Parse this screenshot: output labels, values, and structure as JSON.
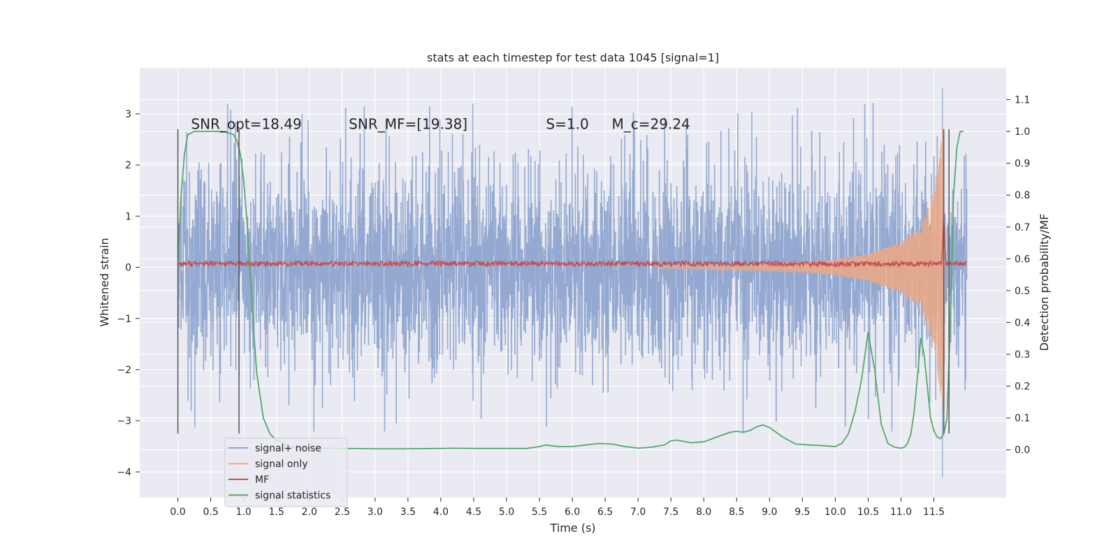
{
  "chart_data": {
    "type": "line",
    "title": "stats at each timestep for test data 1045 [signal=1]",
    "xlabel": "Time (s)",
    "ylabel": "Whitened strain",
    "y2label": "Detection probability/MF",
    "xlim": [
      -0.58,
      12.6
    ],
    "ylim": [
      -4.5,
      3.9
    ],
    "y2lim": [
      -0.15,
      1.2
    ],
    "x_ticks": [
      0.0,
      0.5,
      1.0,
      1.5,
      2.0,
      2.5,
      3.0,
      3.5,
      4.0,
      4.5,
      5.0,
      5.5,
      6.0,
      6.5,
      7.0,
      7.5,
      8.0,
      8.5,
      9.0,
      9.5,
      10.0,
      10.5,
      11.0,
      11.5
    ],
    "x_tick_labels": [
      "0.0",
      "0.5",
      "1.0",
      "1.5",
      "2.0",
      "2.5",
      "3.0",
      "3.5",
      "4.0",
      "4.5",
      "5.0",
      "5.5",
      "6.0",
      "6.5",
      "7.0",
      "7.5",
      "8.0",
      "8.5",
      "9.0",
      "9.5",
      "10.0",
      "10.5",
      "11.0",
      "11.5"
    ],
    "y_ticks": [
      -4,
      -3,
      -2,
      -1,
      0,
      1,
      2,
      3
    ],
    "y_tick_labels": [
      "−4",
      "−3",
      "−2",
      "−1",
      "0",
      "1",
      "2",
      "3"
    ],
    "y2_ticks": [
      0.0,
      0.1,
      0.2,
      0.3,
      0.4,
      0.5,
      0.6,
      0.7,
      0.8,
      0.9,
      1.0,
      1.1
    ],
    "y2_tick_labels": [
      "0.0",
      "0.1",
      "0.2",
      "0.3",
      "0.4",
      "0.5",
      "0.6",
      "0.7",
      "0.8",
      "0.9",
      "1.0",
      "1.1"
    ],
    "grid": true,
    "legend": {
      "placement": "lower-left",
      "entries": [
        {
          "label": "signal+ noise",
          "color": "#8fa5cf"
        },
        {
          "label": "signal only",
          "color": "#e8a987"
        },
        {
          "label": "MF",
          "color": "#c44e52"
        },
        {
          "label": "signal statistics",
          "color": "#55a868"
        }
      ]
    },
    "annotations": [
      {
        "text": "SNR_opt=18.49",
        "x": 0.2,
        "y": 2.8
      },
      {
        "text": "SNR_MF=[19.38]",
        "x": 2.6,
        "y": 2.8
      },
      {
        "text": "S=1.0",
        "x": 5.6,
        "y": 2.8
      },
      {
        "text": "M_c=29.24",
        "x": 6.6,
        "y": 2.8
      }
    ],
    "vertical_lines": [
      {
        "x": 0.0,
        "ymin": -3.25,
        "ymax": 2.7
      },
      {
        "x": 0.93,
        "ymin": -3.25,
        "ymax": 2.7
      },
      {
        "x": 11.65,
        "ymin": -3.25,
        "ymax": 2.7
      },
      {
        "x": 11.73,
        "ymin": -3.25,
        "ymax": 2.7
      }
    ],
    "series": [
      {
        "name": "signal+ noise",
        "color": "#8fa5cf",
        "axis": "left",
        "x_range": [
          0,
          12.0
        ],
        "typical_amplitude": 1.5,
        "peak_max": 3.5,
        "peak_min": -4.1
      },
      {
        "name": "signal only",
        "color": "#e8a987",
        "axis": "left",
        "x": [
          7.5,
          8.5,
          9.5,
          10.0,
          10.5,
          11.0,
          11.3,
          11.5,
          11.6,
          11.65
        ],
        "envelope": [
          0.03,
          0.06,
          0.1,
          0.16,
          0.26,
          0.5,
          0.8,
          1.5,
          2.5,
          3.0
        ]
      },
      {
        "name": "MF",
        "color": "#c44e52",
        "axis": "left",
        "baseline": 0.07,
        "jitter": 0.05,
        "spike_x": 11.65,
        "spike_y": 1.0
      },
      {
        "name": "signal statistics",
        "color": "#55a868",
        "axis": "right",
        "x": [
          0.0,
          0.05,
          0.1,
          0.15,
          0.25,
          0.5,
          0.7,
          0.85,
          0.9,
          0.95,
          1.0,
          1.05,
          1.1,
          1.15,
          1.2,
          1.3,
          1.4,
          1.5,
          1.7,
          2.0,
          2.5,
          3.0,
          3.5,
          4.0,
          4.2,
          4.5,
          5.0,
          5.3,
          5.5,
          5.6,
          5.7,
          5.8,
          6.0,
          6.2,
          6.4,
          6.6,
          6.8,
          7.0,
          7.2,
          7.4,
          7.5,
          7.6,
          7.8,
          8.0,
          8.2,
          8.4,
          8.5,
          8.6,
          8.7,
          8.8,
          8.9,
          9.0,
          9.2,
          9.4,
          9.6,
          9.8,
          10.0,
          10.1,
          10.2,
          10.3,
          10.4,
          10.5,
          10.6,
          10.7,
          10.8,
          10.9,
          11.0,
          11.05,
          11.1,
          11.15,
          11.2,
          11.25,
          11.3,
          11.35,
          11.4,
          11.45,
          11.5,
          11.55,
          11.6,
          11.65,
          11.7,
          11.75,
          11.8,
          11.85,
          11.9,
          11.95
        ],
        "y": [
          0.6,
          0.8,
          0.93,
          0.99,
          1.0,
          1.0,
          1.0,
          0.99,
          0.97,
          0.93,
          0.85,
          0.72,
          0.55,
          0.38,
          0.24,
          0.1,
          0.05,
          0.03,
          0.01,
          0.005,
          0.004,
          0.003,
          0.003,
          0.004,
          0.005,
          0.004,
          0.004,
          0.004,
          0.01,
          0.015,
          0.012,
          0.01,
          0.01,
          0.015,
          0.02,
          0.018,
          0.01,
          0.005,
          0.008,
          0.015,
          0.028,
          0.03,
          0.022,
          0.025,
          0.04,
          0.055,
          0.058,
          0.055,
          0.06,
          0.072,
          0.078,
          0.07,
          0.04,
          0.018,
          0.015,
          0.013,
          0.01,
          0.02,
          0.05,
          0.12,
          0.22,
          0.37,
          0.25,
          0.08,
          0.02,
          0.008,
          0.005,
          0.008,
          0.02,
          0.05,
          0.12,
          0.23,
          0.35,
          0.3,
          0.2,
          0.1,
          0.06,
          0.04,
          0.035,
          0.05,
          0.1,
          0.4,
          0.8,
          0.95,
          1.0,
          1.0
        ]
      }
    ]
  }
}
